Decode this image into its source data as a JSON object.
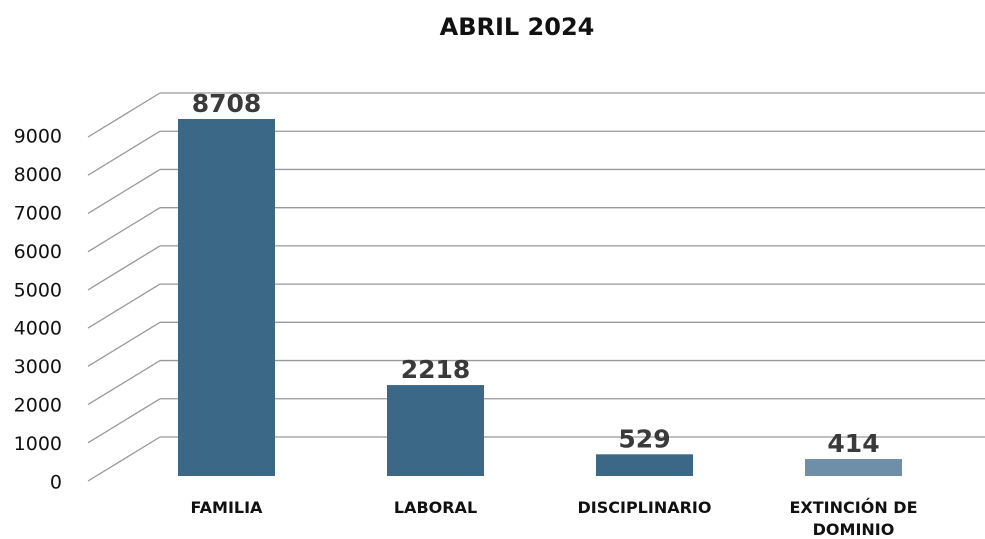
{
  "chart_data": {
    "type": "bar",
    "title": "ABRIL 2024",
    "categories": [
      "FAMILIA",
      "LABORAL",
      "DISCIPLINARIO",
      "EXTINCIÓN DE DOMINIO"
    ],
    "values": [
      8708,
      2218,
      529,
      414
    ],
    "colors": [
      "#3b6886",
      "#3b6886",
      "#3b6886",
      "#6f8fa8"
    ],
    "ylim": [
      0,
      9000
    ],
    "yticks": [
      0,
      1000,
      2000,
      3000,
      4000,
      5000,
      6000,
      7000,
      8000,
      9000
    ],
    "grid": true
  }
}
